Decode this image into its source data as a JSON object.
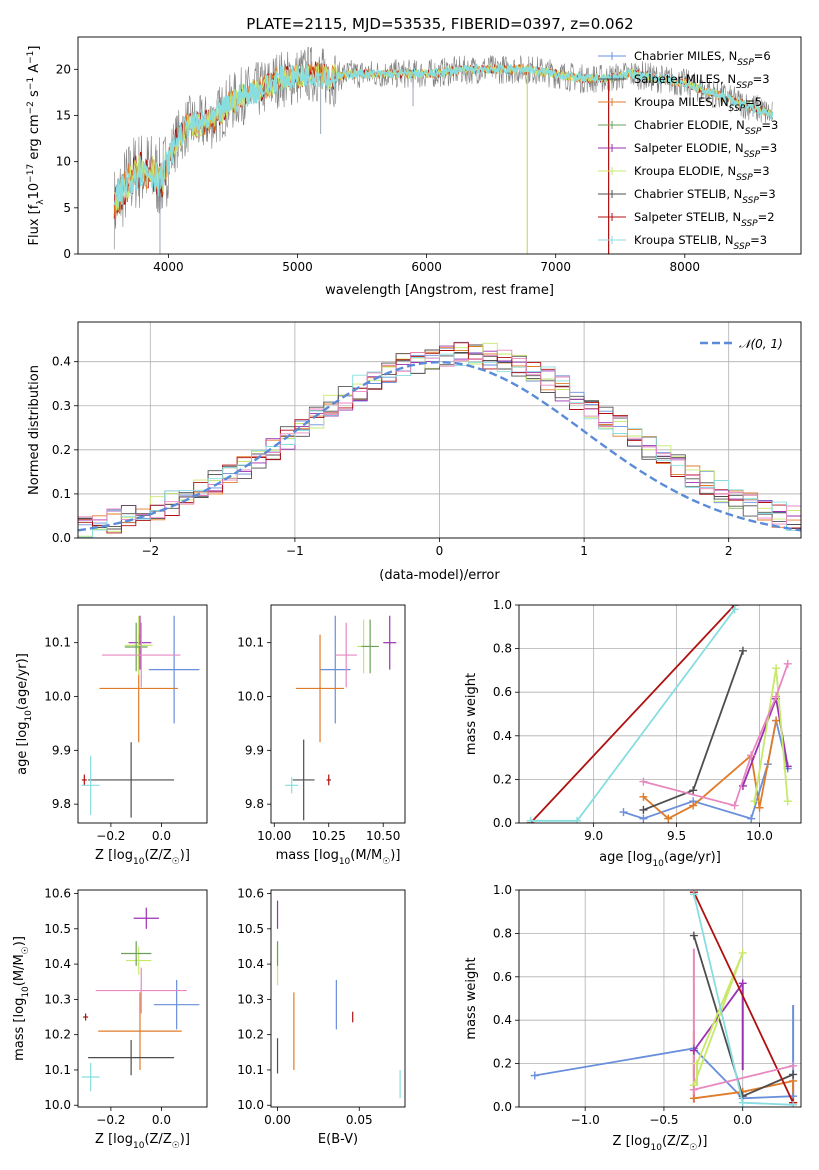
{
  "figure": {
    "title": "PLATE=2115, MJD=53535, FIBERID=0397, z=0.062"
  },
  "colors": {
    "blue": "#6a8fdc",
    "orange": "#e07b28",
    "dark": "#4d4d4d",
    "purple": "#9b30b0",
    "lime": "#c8e86a",
    "darkgray": "#555555",
    "red": "#b01010",
    "cyan": "#88dde0",
    "pink": "#e888c0",
    "green": "#6aa05a"
  },
  "chart_data": [
    {
      "id": "spectrum",
      "type": "line",
      "xlabel": "wavelength [Angstrom, rest frame]",
      "ylabel": "Flux [f_λ10^-17 erg cm^-2 s^-1 A^-1]",
      "ylabel_parts": {
        "a": "Flux [f",
        "b": "λ",
        "c": "10",
        "d": "−17",
        "e": " erg cm",
        "f": "−2",
        "g": " s",
        "h": "−1",
        "i": " A",
        "j": "−1",
        "k": "]"
      },
      "xlim": [
        3300,
        8900
      ],
      "ylim": [
        0,
        23.5
      ],
      "xticks": [
        "4000",
        "5000",
        "6000",
        "7000",
        "8000"
      ],
      "xtick_values": [
        4000,
        5000,
        6000,
        7000,
        8000
      ],
      "yticks": [
        "0",
        "5",
        "10",
        "15",
        "20"
      ],
      "ytick_values": [
        0,
        5,
        10,
        15,
        20
      ],
      "continuum": [
        [
          3580,
          5
        ],
        [
          3650,
          7
        ],
        [
          3750,
          9
        ],
        [
          3850,
          9
        ],
        [
          3950,
          8
        ],
        [
          4050,
          12
        ],
        [
          4150,
          14
        ],
        [
          4250,
          14
        ],
        [
          4350,
          14.5
        ],
        [
          4450,
          16
        ],
        [
          4550,
          17
        ],
        [
          4650,
          17.5
        ],
        [
          4750,
          18
        ],
        [
          4850,
          19
        ],
        [
          4950,
          19
        ],
        [
          5050,
          19.5
        ],
        [
          5150,
          19.5
        ],
        [
          5250,
          19
        ],
        [
          5400,
          19.5
        ],
        [
          5600,
          19.5
        ],
        [
          5800,
          19.5
        ],
        [
          6000,
          19.5
        ],
        [
          6200,
          19.8
        ],
        [
          6400,
          20
        ],
        [
          6600,
          20
        ],
        [
          6800,
          20
        ],
        [
          7000,
          19.5
        ],
        [
          7200,
          19
        ],
        [
          7400,
          19
        ],
        [
          7600,
          19.5
        ],
        [
          7800,
          19
        ],
        [
          8000,
          18.5
        ],
        [
          8200,
          17.5
        ],
        [
          8400,
          16.5
        ],
        [
          8600,
          15.5
        ],
        [
          8680,
          15
        ]
      ],
      "legend": [
        {
          "name": "Chabrier MILES, N",
          "sub": "SSP",
          "tail": "=6",
          "color": "blue"
        },
        {
          "name": "Salpeter MILES, N",
          "sub": "SSP",
          "tail": "=3",
          "color": "darkgray"
        },
        {
          "name": "Kroupa MILES, N",
          "sub": "SSP",
          "tail": "=5",
          "color": "orange"
        },
        {
          "name": "Chabrier ELODIE, N",
          "sub": "SSP",
          "tail": "=3",
          "color": "green"
        },
        {
          "name": "Salpeter ELODIE, N",
          "sub": "SSP",
          "tail": "=3",
          "color": "purple"
        },
        {
          "name": "Kroupa ELODIE, N",
          "sub": "SSP",
          "tail": "=3",
          "color": "lime"
        },
        {
          "name": "Chabrier STELIB, N",
          "sub": "SSP",
          "tail": "=3",
          "color": "dark"
        },
        {
          "name": "Salpeter STELIB, N",
          "sub": "SSP",
          "tail": "=2",
          "color": "red"
        },
        {
          "name": "Kroupa STELIB, N",
          "sub": "SSP",
          "tail": "=3",
          "color": "cyan"
        }
      ]
    },
    {
      "id": "residuals",
      "type": "area",
      "xlabel": "(data-model)/error",
      "ylabel": "Normed distribution",
      "xlim": [
        -2.5,
        2.5
      ],
      "ylim": [
        0,
        0.49
      ],
      "xticks": [
        "−2",
        "−1",
        "0",
        "1",
        "2"
      ],
      "xtick_values": [
        -2,
        -1,
        0,
        1,
        2
      ],
      "yticks": [
        "0.0",
        "0.1",
        "0.2",
        "0.3",
        "0.4"
      ],
      "ytick_values": [
        0,
        0.1,
        0.2,
        0.3,
        0.4
      ],
      "grid": true,
      "legend_label": "𝒩(0, 1)",
      "legend_position": "top-right",
      "bin_width": 0.1
    },
    {
      "id": "age_vs_z",
      "type": "scatter",
      "xlabel": "Z [log10(Z/Z☉)]",
      "ylabel": "age [log10(age/yr)]",
      "xlim": [
        -0.33,
        0.18
      ],
      "ylim": [
        9.765,
        10.17
      ],
      "xticks": [
        "−0.2",
        "0.0"
      ],
      "xtick_values": [
        -0.2,
        0.0
      ],
      "yticks": [
        "9.8",
        "9.9",
        "10.0",
        "10.1"
      ],
      "ytick_values": [
        9.8,
        9.9,
        10.0,
        10.1
      ],
      "points": [
        {
          "x": 0.05,
          "y": 10.05,
          "xerr": 0.1,
          "yerr": 0.1,
          "color": "blue"
        },
        {
          "x": -0.09,
          "y": 10.015,
          "xerr": 0.155,
          "yerr": 0.1,
          "color": "orange"
        },
        {
          "x": -0.12,
          "y": 9.845,
          "xerr": 0.17,
          "yerr": 0.07,
          "color": "dark"
        },
        {
          "x": -0.085,
          "y": 10.1,
          "xerr": 0.045,
          "yerr": 0.05,
          "color": "purple"
        },
        {
          "x": -0.09,
          "y": 10.095,
          "xerr": 0.055,
          "yerr": 0.055,
          "color": "lime"
        },
        {
          "x": -0.1,
          "y": 10.092,
          "xerr": 0.045,
          "yerr": 0.045,
          "color": "green"
        },
        {
          "x": -0.08,
          "y": 10.077,
          "xerr": 0.155,
          "yerr": 0.06,
          "color": "pink"
        },
        {
          "x": -0.305,
          "y": 9.845,
          "xerr": 0.01,
          "yerr": 0.01,
          "color": "red"
        },
        {
          "x": -0.28,
          "y": 9.835,
          "xerr": 0.035,
          "yerr": 0.055,
          "color": "cyan"
        }
      ]
    },
    {
      "id": "age_vs_mass",
      "type": "scatter",
      "xlabel": "mass [log10(M/M☉)]",
      "ylabel": "",
      "xlim": [
        9.985,
        10.6
      ],
      "ylim": [
        9.765,
        10.17
      ],
      "xticks": [
        "10.00",
        "10.25",
        "10.50"
      ],
      "xtick_values": [
        10.0,
        10.25,
        10.5
      ],
      "yticks": [
        "9.8",
        "9.9",
        "10.0",
        "10.1"
      ],
      "ytick_values": [
        9.8,
        9.9,
        10.0,
        10.1
      ],
      "points": [
        {
          "x": 10.28,
          "y": 10.05,
          "xerr": 0.07,
          "yerr": 0.1,
          "color": "blue"
        },
        {
          "x": 10.21,
          "y": 10.015,
          "xerr": 0.11,
          "yerr": 0.1,
          "color": "orange"
        },
        {
          "x": 10.135,
          "y": 9.845,
          "xerr": 0.05,
          "yerr": 0.075,
          "color": "dark"
        },
        {
          "x": 10.53,
          "y": 10.1,
          "xerr": 0.03,
          "yerr": 0.05,
          "color": "purple"
        },
        {
          "x": 10.41,
          "y": 10.093,
          "xerr": 0.03,
          "yerr": 0.05,
          "color": "lime"
        },
        {
          "x": 10.44,
          "y": 10.093,
          "xerr": 0.04,
          "yerr": 0.05,
          "color": "green"
        },
        {
          "x": 10.33,
          "y": 10.077,
          "xerr": 0.05,
          "yerr": 0.06,
          "color": "pink"
        },
        {
          "x": 10.25,
          "y": 9.845,
          "xerr": 0.01,
          "yerr": 0.01,
          "color": "red"
        },
        {
          "x": 10.08,
          "y": 9.835,
          "xerr": 0.03,
          "yerr": 0.015,
          "color": "cyan"
        }
      ]
    },
    {
      "id": "weight_vs_age",
      "type": "line",
      "xlabel": "age [log10(age/yr)]",
      "ylabel": "mass weight",
      "xlim": [
        8.55,
        10.25
      ],
      "ylim": [
        0,
        1.0
      ],
      "xticks": [
        "9.0",
        "9.5",
        "10.0"
      ],
      "xtick_values": [
        9.0,
        9.5,
        10.0
      ],
      "yticks": [
        "0.0",
        "0.2",
        "0.4",
        "0.6",
        "0.8",
        "1.0"
      ],
      "ytick_values": [
        0,
        0.2,
        0.4,
        0.6,
        0.8,
        1.0
      ],
      "grid": true,
      "series": [
        {
          "color": "blue",
          "points": [
            [
              9.18,
              0.05
            ],
            [
              9.3,
              0.02
            ],
            [
              9.6,
              0.1
            ],
            [
              9.95,
              0.02
            ],
            [
              10.05,
              0.27
            ],
            [
              10.1,
              0.47
            ],
            [
              10.17,
              0.25
            ]
          ]
        },
        {
          "color": "orange",
          "points": [
            [
              9.3,
              0.12
            ],
            [
              9.45,
              0.02
            ],
            [
              9.6,
              0.08
            ],
            [
              9.95,
              0.31
            ],
            [
              10.0,
              0.07
            ],
            [
              10.1,
              0.47
            ]
          ]
        },
        {
          "color": "dark",
          "points": [
            [
              9.3,
              0.06
            ],
            [
              9.6,
              0.15
            ],
            [
              9.9,
              0.79
            ]
          ]
        },
        {
          "color": "purple",
          "points": [
            [
              9.9,
              0.17
            ],
            [
              10.1,
              0.57
            ],
            [
              10.17,
              0.26
            ]
          ]
        },
        {
          "color": "lime",
          "points": [
            [
              9.97,
              0.1
            ],
            [
              10.1,
              0.71
            ],
            [
              10.17,
              0.1
            ]
          ]
        },
        {
          "color": "red",
          "points": [
            [
              8.62,
              0.0
            ],
            [
              9.85,
              1.0
            ]
          ]
        },
        {
          "color": "cyan",
          "points": [
            [
              8.62,
              0.01
            ],
            [
              8.9,
              0.01
            ],
            [
              9.85,
              0.98
            ]
          ]
        },
        {
          "color": "pink",
          "points": [
            [
              9.3,
              0.19
            ],
            [
              9.85,
              0.08
            ],
            [
              9.95,
              0.31
            ],
            [
              10.1,
              0.58
            ],
            [
              10.17,
              0.73
            ]
          ]
        }
      ]
    },
    {
      "id": "mass_vs_z",
      "type": "scatter",
      "xlabel": "Z [log10(Z/Z☉)]",
      "ylabel": "mass [log10(M/M☉)]",
      "xlim": [
        -0.33,
        0.18
      ],
      "ylim": [
        9.995,
        10.61
      ],
      "xticks": [
        "−0.2",
        "0.0"
      ],
      "xtick_values": [
        -0.2,
        0.0
      ],
      "yticks": [
        "10.0",
        "10.1",
        "10.2",
        "10.3",
        "10.4",
        "10.5",
        "10.6"
      ],
      "ytick_values": [
        10.0,
        10.1,
        10.2,
        10.3,
        10.4,
        10.5,
        10.6
      ],
      "points": [
        {
          "x": 0.06,
          "y": 10.285,
          "xerr": 0.09,
          "yerr": 0.07,
          "color": "blue"
        },
        {
          "x": -0.085,
          "y": 10.21,
          "xerr": 0.165,
          "yerr": 0.11,
          "color": "orange"
        },
        {
          "x": -0.12,
          "y": 10.135,
          "xerr": 0.17,
          "yerr": 0.05,
          "color": "dark"
        },
        {
          "x": -0.06,
          "y": 10.53,
          "xerr": 0.05,
          "yerr": 0.03,
          "color": "purple"
        },
        {
          "x": -0.09,
          "y": 10.41,
          "xerr": 0.05,
          "yerr": 0.04,
          "color": "lime"
        },
        {
          "x": -0.1,
          "y": 10.43,
          "xerr": 0.06,
          "yerr": 0.035,
          "color": "green"
        },
        {
          "x": -0.08,
          "y": 10.325,
          "xerr": 0.18,
          "yerr": 0.065,
          "color": "pink"
        },
        {
          "x": -0.3,
          "y": 10.25,
          "xerr": 0.01,
          "yerr": 0.01,
          "color": "red"
        },
        {
          "x": -0.28,
          "y": 10.08,
          "xerr": 0.035,
          "yerr": 0.04,
          "color": "cyan"
        }
      ]
    },
    {
      "id": "mass_vs_ebv",
      "type": "scatter",
      "xlabel": "E(B-V)",
      "ylabel": "",
      "xlim": [
        -0.004,
        0.078
      ],
      "ylim": [
        9.995,
        10.61
      ],
      "xticks": [
        "0.00",
        "0.05"
      ],
      "xtick_values": [
        0.0,
        0.05
      ],
      "yticks": [
        "10.0",
        "10.1",
        "10.2",
        "10.3",
        "10.4",
        "10.5",
        "10.6"
      ],
      "ytick_values": [
        10.0,
        10.1,
        10.2,
        10.3,
        10.4,
        10.5,
        10.6
      ],
      "points": [
        {
          "x": 0.036,
          "y": 10.285,
          "xerr": 0.0,
          "yerr": 0.07,
          "color": "blue"
        },
        {
          "x": 0.01,
          "y": 10.21,
          "xerr": 0.0,
          "yerr": 0.11,
          "color": "orange"
        },
        {
          "x": 0.0,
          "y": 10.14,
          "xerr": 0.0,
          "yerr": 0.05,
          "color": "dark"
        },
        {
          "x": 0.0,
          "y": 10.54,
          "xerr": 0.0,
          "yerr": 0.04,
          "color": "purple"
        },
        {
          "x": 0.0,
          "y": 10.4,
          "xerr": 0.0,
          "yerr": 0.06,
          "color": "lime"
        },
        {
          "x": 0.0,
          "y": 10.43,
          "xerr": 0.0,
          "yerr": 0.035,
          "color": "green"
        },
        {
          "x": 0.046,
          "y": 10.25,
          "xerr": 0.0,
          "yerr": 0.015,
          "color": "red"
        },
        {
          "x": 0.075,
          "y": 10.06,
          "xerr": 0.0,
          "yerr": 0.04,
          "color": "cyan"
        }
      ]
    },
    {
      "id": "weight_vs_z",
      "type": "line",
      "xlabel": "Z [log10(Z/Z☉)]",
      "ylabel": "mass weight",
      "xlim": [
        -1.42,
        0.37
      ],
      "ylim": [
        0,
        1.0
      ],
      "xticks": [
        "−1.0",
        "−0.5",
        "0.0"
      ],
      "xtick_values": [
        -1.0,
        -0.5,
        0.0
      ],
      "yticks": [
        "0.0",
        "0.2",
        "0.4",
        "0.6",
        "0.8",
        "1.0"
      ],
      "ytick_values": [
        0,
        0.2,
        0.4,
        0.6,
        0.8,
        1.0
      ],
      "grid": true,
      "vbars": [
        {
          "x": 0.32,
          "y0": 0.02,
          "y1": 0.47,
          "color": "blue"
        },
        {
          "x": -0.31,
          "y0": 0.02,
          "y1": 0.35,
          "color": "orange"
        },
        {
          "x": 0.32,
          "y0": 0.02,
          "y1": 0.12,
          "color": "orange"
        },
        {
          "x": -0.31,
          "y0": 0.02,
          "y1": 0.73,
          "color": "pink"
        },
        {
          "x": 0.0,
          "y0": 0.17,
          "y1": 0.57,
          "color": "purple"
        },
        {
          "x": -0.29,
          "y0": 0.1,
          "y1": 0.21,
          "color": "lime"
        }
      ],
      "series": [
        {
          "color": "blue",
          "points": [
            [
              -1.32,
              0.145
            ],
            [
              -0.31,
              0.27
            ],
            [
              0.0,
              0.04
            ],
            [
              0.32,
              0.05
            ]
          ]
        },
        {
          "color": "orange",
          "points": [
            [
              -0.31,
              0.04
            ],
            [
              0.0,
              0.07
            ],
            [
              0.32,
              0.12
            ]
          ]
        },
        {
          "color": "dark",
          "points": [
            [
              -0.31,
              0.79
            ],
            [
              0.0,
              0.05
            ],
            [
              0.32,
              0.15
            ]
          ]
        },
        {
          "color": "purple",
          "points": [
            [
              -0.31,
              0.26
            ],
            [
              0.0,
              0.57
            ]
          ]
        },
        {
          "color": "lime",
          "points": [
            [
              -0.31,
              0.1
            ],
            [
              0.0,
              0.71
            ],
            [
              -0.29,
              0.2
            ]
          ]
        },
        {
          "color": "red",
          "points": [
            [
              -0.31,
              0.99
            ],
            [
              0.32,
              0.02
            ]
          ]
        },
        {
          "color": "cyan",
          "points": [
            [
              -0.31,
              0.98
            ],
            [
              0.0,
              0.02
            ],
            [
              0.32,
              0.01
            ]
          ]
        },
        {
          "color": "pink",
          "points": [
            [
              -0.31,
              0.08
            ],
            [
              0.32,
              0.19
            ]
          ]
        }
      ]
    }
  ]
}
